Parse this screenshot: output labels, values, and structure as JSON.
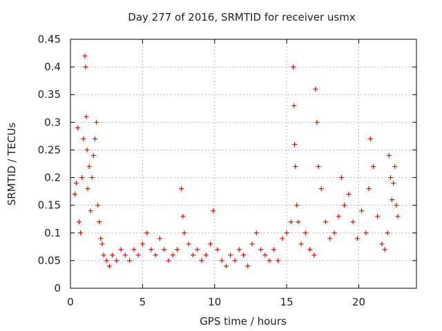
{
  "chart_data": {
    "type": "scatter",
    "title": "Day 277 of 2016, SRMTID for receiver usmx",
    "xlabel": "GPS time / hours",
    "ylabel": "SRMTID / TECUs",
    "xlim": [
      0,
      24
    ],
    "ylim": [
      0,
      0.45
    ],
    "xticks": [
      0,
      5,
      10,
      15,
      20
    ],
    "xtick_labels": [
      "0",
      "5",
      "10",
      "15",
      "20"
    ],
    "yticks": [
      0,
      0.05,
      0.1,
      0.15,
      0.2,
      0.25,
      0.3,
      0.35,
      0.4,
      0.45
    ],
    "ytick_labels": [
      "0",
      "0.05",
      "0.1",
      "0.15",
      "0.2",
      "0.25",
      "0.3",
      "0.35",
      "0.4",
      "0.45"
    ],
    "grid": true,
    "marker": "plus",
    "color": "#ff0000",
    "series": [
      {
        "name": "SRMTID",
        "x": [
          0.3,
          0.4,
          0.5,
          0.6,
          0.7,
          0.8,
          0.9,
          1.0,
          1.05,
          1.1,
          1.15,
          1.2,
          1.3,
          1.4,
          1.5,
          1.6,
          1.7,
          1.8,
          1.9,
          2.0,
          2.1,
          2.2,
          2.3,
          2.5,
          2.7,
          2.9,
          3.2,
          3.5,
          3.8,
          4.1,
          4.4,
          4.7,
          5.0,
          5.3,
          5.6,
          5.9,
          6.2,
          6.5,
          6.8,
          7.1,
          7.4,
          7.7,
          7.8,
          7.9,
          8.2,
          8.5,
          8.8,
          9.1,
          9.4,
          9.7,
          9.9,
          10.2,
          10.5,
          10.8,
          11.1,
          11.4,
          11.7,
          12.0,
          12.3,
          12.6,
          12.9,
          13.2,
          13.5,
          13.8,
          14.1,
          14.4,
          14.7,
          15.0,
          15.3,
          15.45,
          15.5,
          15.55,
          15.6,
          15.7,
          15.8,
          16.0,
          16.3,
          16.6,
          16.9,
          17.0,
          17.1,
          17.2,
          17.4,
          17.7,
          18.0,
          18.3,
          18.6,
          18.8,
          19.0,
          19.3,
          19.6,
          19.9,
          20.2,
          20.5,
          20.7,
          20.8,
          21.0,
          21.3,
          21.6,
          21.8,
          22.0,
          22.1,
          22.2,
          22.3,
          22.4,
          22.5,
          22.6,
          22.7
        ],
        "y": [
          0.17,
          0.19,
          0.29,
          0.12,
          0.1,
          0.2,
          0.27,
          0.42,
          0.4,
          0.31,
          0.25,
          0.18,
          0.22,
          0.14,
          0.2,
          0.24,
          0.27,
          0.3,
          0.15,
          0.12,
          0.09,
          0.08,
          0.06,
          0.05,
          0.04,
          0.06,
          0.05,
          0.07,
          0.06,
          0.05,
          0.07,
          0.06,
          0.08,
          0.1,
          0.07,
          0.06,
          0.09,
          0.07,
          0.05,
          0.06,
          0.07,
          0.18,
          0.13,
          0.1,
          0.08,
          0.06,
          0.07,
          0.05,
          0.06,
          0.08,
          0.14,
          0.07,
          0.05,
          0.04,
          0.06,
          0.05,
          0.07,
          0.06,
          0.04,
          0.08,
          0.1,
          0.07,
          0.06,
          0.05,
          0.07,
          0.05,
          0.09,
          0.1,
          0.12,
          0.4,
          0.33,
          0.26,
          0.22,
          0.15,
          0.12,
          0.08,
          0.1,
          0.07,
          0.06,
          0.36,
          0.3,
          0.22,
          0.18,
          0.12,
          0.09,
          0.1,
          0.13,
          0.2,
          0.15,
          0.17,
          0.12,
          0.09,
          0.14,
          0.1,
          0.18,
          0.27,
          0.22,
          0.13,
          0.08,
          0.07,
          0.1,
          0.24,
          0.2,
          0.16,
          0.19,
          0.22,
          0.15,
          0.13
        ]
      }
    ]
  }
}
